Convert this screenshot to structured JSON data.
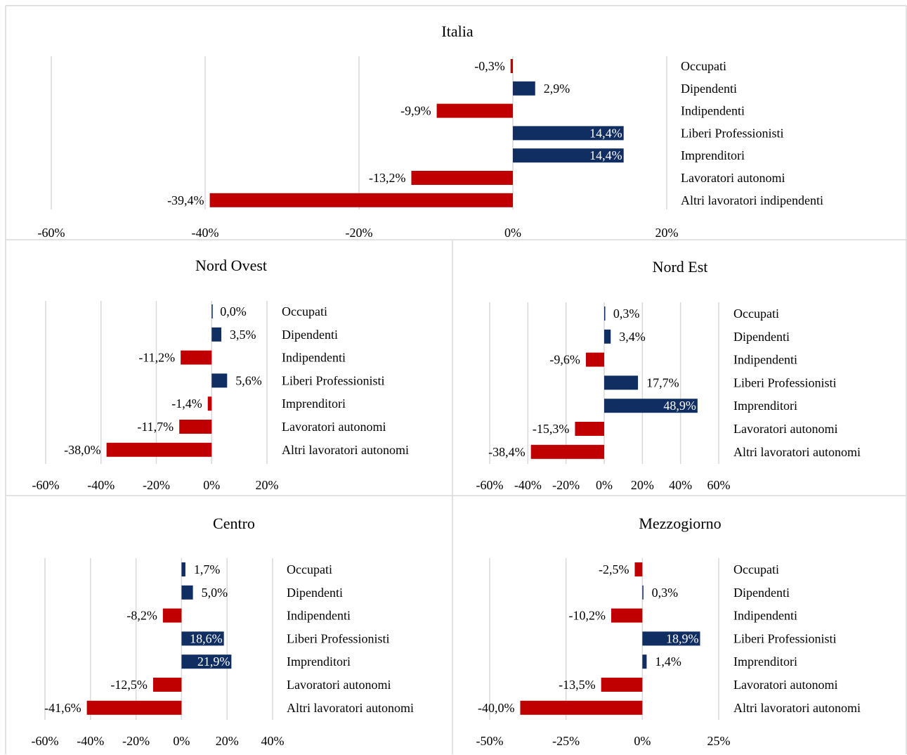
{
  "colors": {
    "positive": "#112e63",
    "negative": "#c00000",
    "grid": "#d9d9d9",
    "border": "#d9d9d9",
    "text": "#000000",
    "label_inside": "#ffffff"
  },
  "chart_data": [
    {
      "type": "bar",
      "orientation": "horizontal",
      "title": "Italia",
      "categories": [
        "Occupati",
        "Dipendenti",
        "Indipendenti",
        "Liberi Professionisti",
        "Imprenditori",
        "Lavoratori autonomi",
        "Altri lavoratori indipendenti"
      ],
      "values": [
        -0.3,
        2.9,
        -9.9,
        14.4,
        14.4,
        -13.2,
        -39.4
      ],
      "value_labels": [
        "-0,3%",
        "2,9%",
        "-9,9%",
        "14,4%",
        "14,4%",
        "-13,2%",
        "-39,4%"
      ],
      "xlim": [
        -60,
        20
      ],
      "xticks": [
        -60,
        -40,
        -20,
        0,
        20
      ],
      "xtick_labels": [
        "-60%",
        "-40%",
        "-20%",
        "0%",
        "20%"
      ],
      "grid": true,
      "legend": "none"
    },
    {
      "type": "bar",
      "orientation": "horizontal",
      "title": "Nord Ovest",
      "categories": [
        "Occupati",
        "Dipendenti",
        "Indipendenti",
        "Liberi Professionisti",
        "Imprenditori",
        "Lavoratori autonomi",
        "Altri lavoratori autonomi"
      ],
      "values": [
        0.0,
        3.5,
        -11.2,
        5.6,
        -1.4,
        -11.7,
        -38.0
      ],
      "value_labels": [
        "0,0%",
        "3,5%",
        "-11,2%",
        "5,6%",
        "-1,4%",
        "-11,7%",
        "-38,0%"
      ],
      "xlim": [
        -60,
        20
      ],
      "xticks": [
        -60,
        -40,
        -20,
        0,
        20
      ],
      "xtick_labels": [
        "-60%",
        "-40%",
        "-20%",
        "0%",
        "20%"
      ],
      "grid": true,
      "legend": "none"
    },
    {
      "type": "bar",
      "orientation": "horizontal",
      "title": "Nord Est",
      "categories": [
        "Occupati",
        "Dipendenti",
        "Indipendenti",
        "Liberi Professionisti",
        "Imprenditori",
        "Lavoratori autonomi",
        "Altri lavoratori autonomi"
      ],
      "values": [
        0.3,
        3.4,
        -9.6,
        17.7,
        48.9,
        -15.3,
        -38.4
      ],
      "value_labels": [
        "0,3%",
        "3,4%",
        "-9,6%",
        "17,7%",
        "48,9%",
        "-15,3%",
        "-38,4%"
      ],
      "xlim": [
        -60,
        60
      ],
      "xticks": [
        -60,
        -40,
        -20,
        0,
        20,
        40,
        60
      ],
      "xtick_labels": [
        "-60%",
        "-40%",
        "-20%",
        "0%",
        "20%",
        "40%",
        "60%"
      ],
      "grid": true,
      "legend": "none"
    },
    {
      "type": "bar",
      "orientation": "horizontal",
      "title": "Centro",
      "categories": [
        "Occupati",
        "Dipendenti",
        "Indipendenti",
        "Liberi Professionisti",
        "Imprenditori",
        "Lavoratori autonomi",
        "Altri lavoratori autonomi"
      ],
      "values": [
        1.7,
        5.0,
        -8.2,
        18.6,
        21.9,
        -12.5,
        -41.6
      ],
      "value_labels": [
        "1,7%",
        "5,0%",
        "-8,2%",
        "18,6%",
        "21,9%",
        "-12,5%",
        "-41,6%"
      ],
      "xlim": [
        -60,
        40
      ],
      "xticks": [
        -60,
        -40,
        -20,
        0,
        20,
        40
      ],
      "xtick_labels": [
        "-60%",
        "-40%",
        "-20%",
        "0%",
        "20%",
        "40%"
      ],
      "grid": true,
      "legend": "none"
    },
    {
      "type": "bar",
      "orientation": "horizontal",
      "title": "Mezzogiorno",
      "categories": [
        "Occupati",
        "Dipendenti",
        "Indipendenti",
        "Liberi Professionisti",
        "Imprenditori",
        "Lavoratori autonomi",
        "Altri lavoratori autonomi"
      ],
      "values": [
        -2.5,
        0.3,
        -10.2,
        18.9,
        1.4,
        -13.5,
        -40.0
      ],
      "value_labels": [
        "-2,5%",
        "0,3%",
        "-10,2%",
        "18,9%",
        "1,4%",
        "-13,5%",
        "-40,0%"
      ],
      "xlim": [
        -50,
        25
      ],
      "xticks": [
        -50,
        -25,
        0,
        25
      ],
      "xtick_labels": [
        "-50%",
        "-25%",
        "0%",
        "25%"
      ],
      "grid": true,
      "legend": "none"
    }
  ]
}
